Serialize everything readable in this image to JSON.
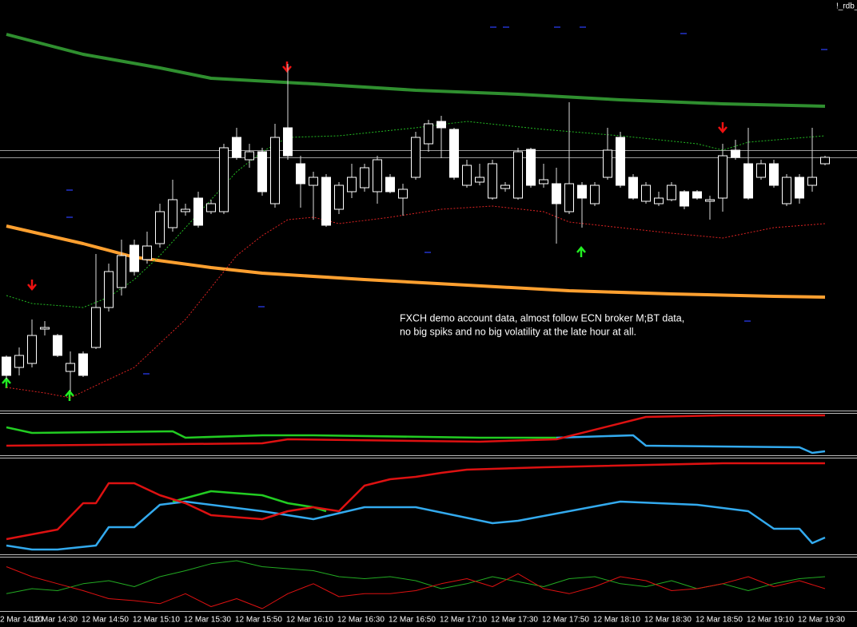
{
  "chart_data": {
    "type": "candlestick",
    "window_label": "!_rdb_",
    "annotation": [
      "FXCH demo account data, almost follow ECN broker M;BT data,",
      "no big spiks and no big volatility at the late hour at all."
    ],
    "x_tick_labels": [
      "2 Mar 14:10",
      "12 Mar 14:30",
      "12 Mar 14:50",
      "12 Mar 15:10",
      "12 Mar 15:30",
      "12 Mar 15:50",
      "12 Mar 16:10",
      "12 Mar 16:30",
      "12 Mar 16:50",
      "12 Mar 17:10",
      "12 Mar 17:30",
      "12 Mar 17:50",
      "12 Mar 18:10",
      "12 Mar 18:30",
      "12 Mar 18:50",
      "12 Mar 19:10",
      "12 Mar 19:30"
    ],
    "open": [
      40,
      65,
      90,
      100,
      65,
      55,
      40,
      125,
      170,
      190,
      170,
      202,
      245,
      260,
      248,
      228,
      255,
      325,
      313,
      320,
      270,
      338,
      315,
      280,
      288,
      228,
      278,
      288,
      300,
      310,
      270,
      273,
      338,
      355,
      350,
      288,
      303,
      288,
      305,
      278,
      320,
      278,
      285,
      255,
      280,
      262,
      278,
      322,
      278,
      262,
      278,
      262,
      278,
      252,
      262,
      260,
      315,
      313,
      262,
      305,
      278,
      288,
      262,
      288,
      313
    ],
    "high": [
      65,
      75,
      110,
      108,
      92,
      70,
      70,
      192,
      180,
      210,
      210,
      220,
      255,
      285,
      255,
      270,
      260,
      330,
      350,
      330,
      325,
      355,
      430,
      315,
      295,
      292,
      282,
      305,
      305,
      315,
      292,
      280,
      345,
      360,
      365,
      350,
      310,
      305,
      310,
      282,
      325,
      325,
      305,
      300,
      382,
      282,
      282,
      350,
      345,
      292,
      282,
      270,
      282,
      272,
      272,
      265,
      330,
      335,
      350,
      310,
      310,
      292,
      292,
      350,
      315
    ],
    "low": [
      35,
      40,
      50,
      90,
      63,
      20,
      38,
      73,
      120,
      140,
      165,
      180,
      200,
      220,
      240,
      225,
      242,
      242,
      310,
      300,
      265,
      250,
      310,
      250,
      235,
      226,
      242,
      262,
      270,
      255,
      268,
      240,
      285,
      320,
      312,
      285,
      275,
      278,
      260,
      270,
      260,
      275,
      275,
      205,
      242,
      225,
      252,
      285,
      275,
      260,
      255,
      252,
      258,
      248,
      260,
      235,
      245,
      310,
      260,
      285,
      275,
      252,
      255,
      270,
      303
    ],
    "close": [
      63,
      50,
      55,
      98,
      90,
      45,
      67,
      75,
      125,
      150,
      203,
      185,
      205,
      225,
      245,
      262,
      245,
      245,
      338,
      310,
      320,
      255,
      350,
      305,
      278,
      288,
      248,
      270,
      275,
      270,
      288,
      262,
      288,
      330,
      358,
      348,
      278,
      282,
      262,
      274,
      262,
      323,
      280,
      280,
      245,
      278,
      255,
      288,
      338,
      288,
      258,
      255,
      260,
      270,
      270,
      258,
      262,
      322,
      305,
      288,
      305,
      255,
      288,
      278,
      305
    ],
    "lines": [
      {
        "color": "#2f8f2f",
        "width": 4,
        "dash": false,
        "x": [
          0,
          6,
          12,
          16,
          24,
          32,
          40,
          48,
          56,
          64
        ],
        "values": [
          467,
          442,
          425,
          412,
          405,
          397,
          392,
          385,
          380,
          377
        ]
      },
      {
        "color": "#ffa030",
        "width": 4,
        "dash": false,
        "x": [
          0,
          6,
          10,
          16,
          20,
          28,
          36,
          44,
          52,
          60,
          64
        ],
        "values": [
          227,
          205,
          188,
          175,
          168,
          160,
          153,
          146,
          142,
          139,
          138
        ]
      },
      {
        "color": "#22bb22",
        "width": 1,
        "dash": true,
        "x": [
          0,
          2,
          6,
          8,
          10,
          12,
          16,
          18,
          20,
          22,
          26,
          32,
          36,
          42,
          48,
          54,
          56,
          58,
          64
        ],
        "values": [
          140,
          130,
          125,
          138,
          160,
          190,
          260,
          295,
          320,
          338,
          340,
          350,
          358,
          348,
          340,
          330,
          322,
          332,
          340
        ]
      },
      {
        "color": "#dd2222",
        "width": 1,
        "dash": true,
        "x": [
          0,
          3,
          5,
          8,
          10,
          12,
          14,
          16,
          18,
          20,
          22,
          24,
          26,
          30,
          34,
          38,
          42,
          44,
          48,
          52,
          56,
          60,
          64
        ],
        "values": [
          25,
          18,
          12,
          35,
          50,
          80,
          110,
          150,
          190,
          215,
          235,
          238,
          230,
          238,
          248,
          252,
          245,
          232,
          225,
          218,
          212,
          225,
          230
        ]
      }
    ],
    "panels": [
      {
        "series": [
          {
            "color": "#22cc22",
            "x": [
              0,
              2,
              13,
              14,
              20,
              24,
              37,
              43
            ],
            "values": [
              35,
              28,
              30,
              22,
              25,
              25,
              22,
              22
            ]
          },
          {
            "color": "#33aaee",
            "x": [
              43,
              49,
              50,
              62,
              63,
              64
            ],
            "values": [
              22,
              25,
              12,
              10,
              3,
              5
            ]
          },
          {
            "color": "#dd1111",
            "x": [
              0,
              20,
              22,
              37,
              43,
              50,
              56,
              64
            ],
            "values": [
              12,
              15,
              20,
              17,
              20,
              48,
              50,
              50
            ]
          }
        ]
      },
      {
        "series": [
          {
            "color": "#33aaee",
            "x": [
              0,
              2,
              4,
              7,
              8,
              10,
              12,
              14,
              20,
              24,
              28,
              32,
              38,
              40,
              48,
              54,
              58,
              60,
              62,
              63,
              64
            ],
            "values": [
              12,
              7,
              7,
              12,
              35,
              35,
              63,
              67,
              55,
              45,
              60,
              60,
              40,
              43,
              67,
              63,
              55,
              33,
              33,
              15,
              22
            ]
          },
          {
            "color": "#22cc22",
            "x": [
              13,
              16,
              20,
              22,
              24,
              25
            ],
            "values": [
              67,
              80,
              75,
              65,
              60,
              55
            ]
          },
          {
            "color": "#dd1111",
            "x": [
              0,
              4,
              6,
              7,
              8,
              10,
              12,
              14,
              16,
              20,
              22,
              24,
              26,
              28,
              30,
              32,
              34,
              36,
              42,
              56,
              64
            ],
            "values": [
              20,
              32,
              65,
              65,
              90,
              90,
              75,
              65,
              50,
              45,
              55,
              60,
              55,
              87,
              95,
              98,
              103,
              107,
              110,
              115,
              115
            ]
          }
        ]
      },
      {
        "series": [
          {
            "color": "#22aa22",
            "x": [
              0,
              2,
              4,
              6,
              8,
              10,
              12,
              14,
              16,
              18,
              20,
              22,
              24,
              26,
              28,
              30,
              32,
              34,
              36,
              38,
              40,
              42,
              44,
              46,
              48,
              50,
              52,
              54,
              56,
              58,
              60,
              62,
              64
            ],
            "values": [
              20,
              25,
              23,
              30,
              33,
              27,
              37,
              43,
              50,
              53,
              47,
              45,
              43,
              37,
              35,
              37,
              33,
              25,
              30,
              37,
              32,
              27,
              35,
              37,
              30,
              27,
              33,
              25,
              30,
              23,
              30,
              35,
              37
            ]
          },
          {
            "color": "#dd1111",
            "x": [
              0,
              2,
              4,
              6,
              8,
              10,
              12,
              14,
              16,
              18,
              20,
              22,
              24,
              26,
              28,
              30,
              32,
              34,
              36,
              38,
              40,
              42,
              44,
              46,
              48,
              50,
              52,
              54,
              56,
              58,
              60,
              62,
              64
            ],
            "values": [
              47,
              37,
              30,
              23,
              15,
              13,
              10,
              20,
              7,
              15,
              5,
              20,
              30,
              17,
              20,
              20,
              23,
              30,
              35,
              27,
              40,
              25,
              20,
              27,
              37,
              33,
              23,
              25,
              30,
              37,
              27,
              33,
              25
            ]
          }
        ]
      }
    ]
  }
}
